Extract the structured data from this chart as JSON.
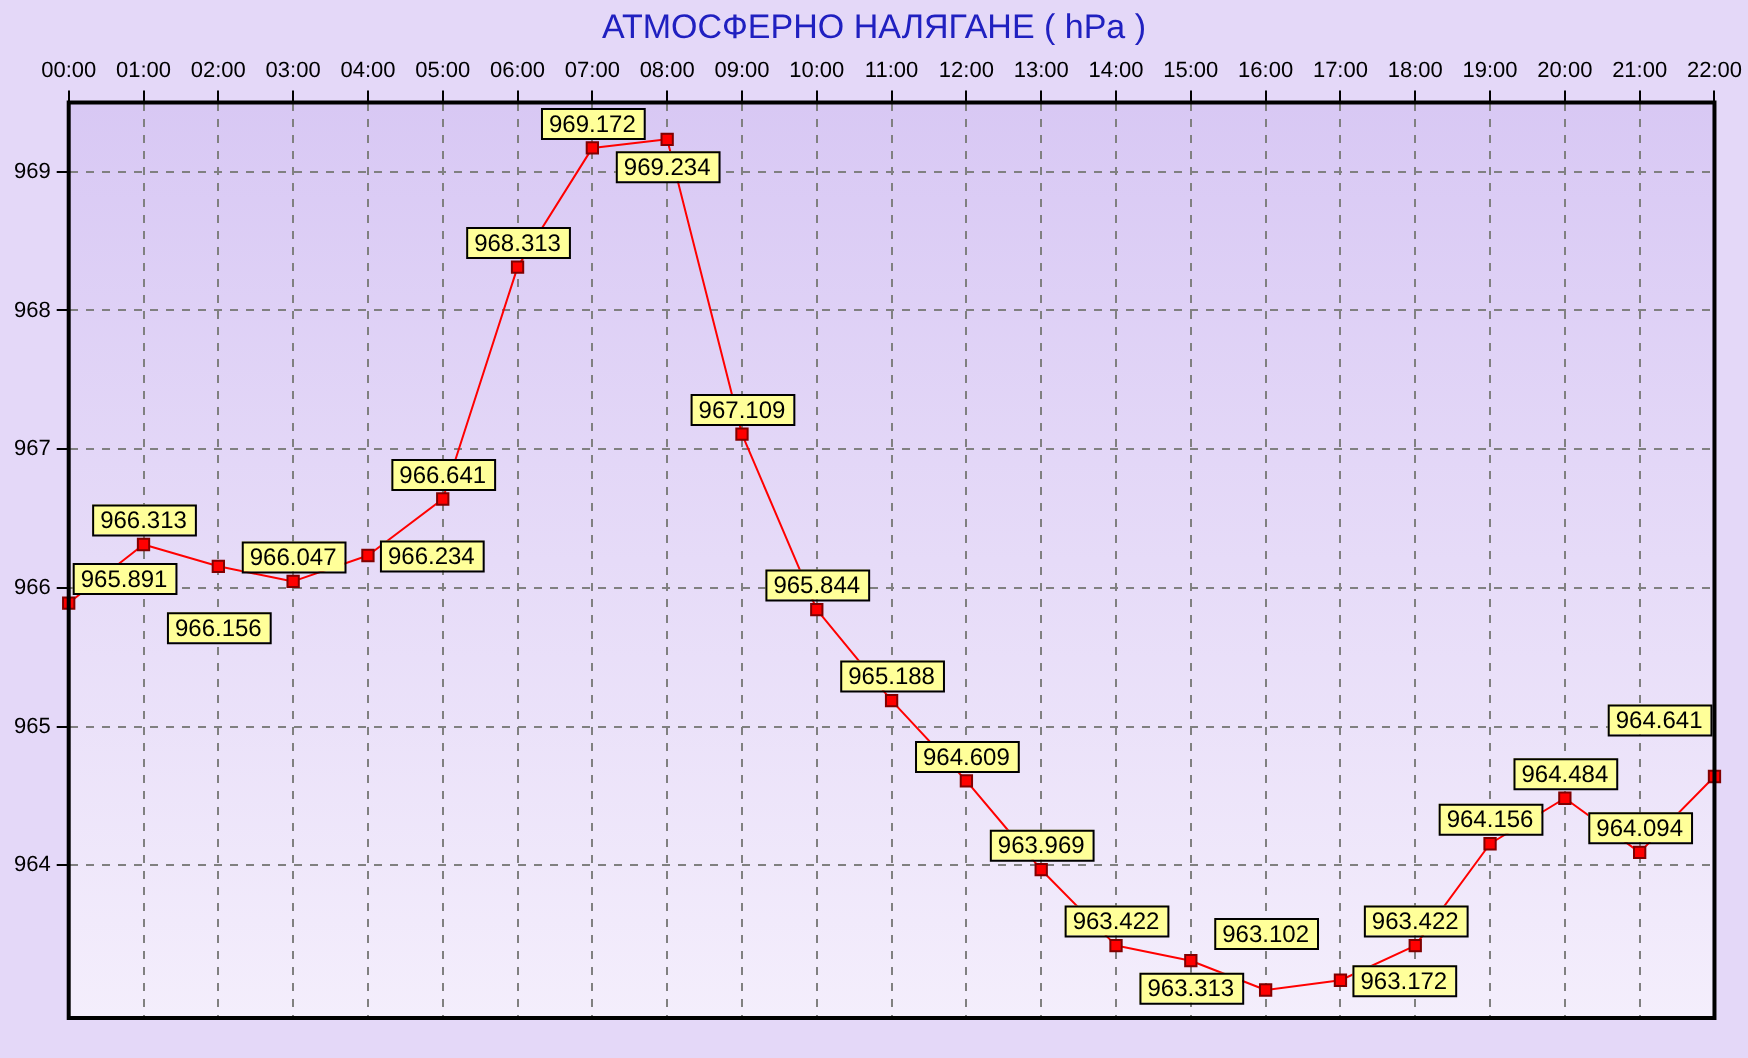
{
  "chart_data": {
    "type": "line",
    "title": "АТМОСФЕРНО НАЛЯГАНЕ  ( hPa )",
    "categories": [
      "00:00",
      "01:00",
      "02:00",
      "03:00",
      "04:00",
      "05:00",
      "06:00",
      "07:00",
      "08:00",
      "09:00",
      "10:00",
      "11:00",
      "12:00",
      "13:00",
      "14:00",
      "15:00",
      "16:00",
      "17:00",
      "18:00",
      "19:00",
      "20:00",
      "21:00",
      "22:00"
    ],
    "series": [
      {
        "color": "#ff0000",
        "values": [
          965.891,
          966.313,
          966.156,
          966.047,
          966.234,
          966.641,
          968.313,
          969.172,
          969.234,
          967.109,
          965.844,
          965.188,
          964.609,
          963.969,
          963.422,
          963.313,
          963.102,
          963.172,
          963.422,
          964.156,
          964.484,
          964.094,
          964.641
        ]
      }
    ],
    "ylim": [
      962.9,
      969.5
    ],
    "yticks": [
      964,
      965,
      966,
      967,
      968,
      969
    ],
    "grid": true,
    "legend": false,
    "marker": "square",
    "line_style": "solid",
    "data_labels": true
  }
}
